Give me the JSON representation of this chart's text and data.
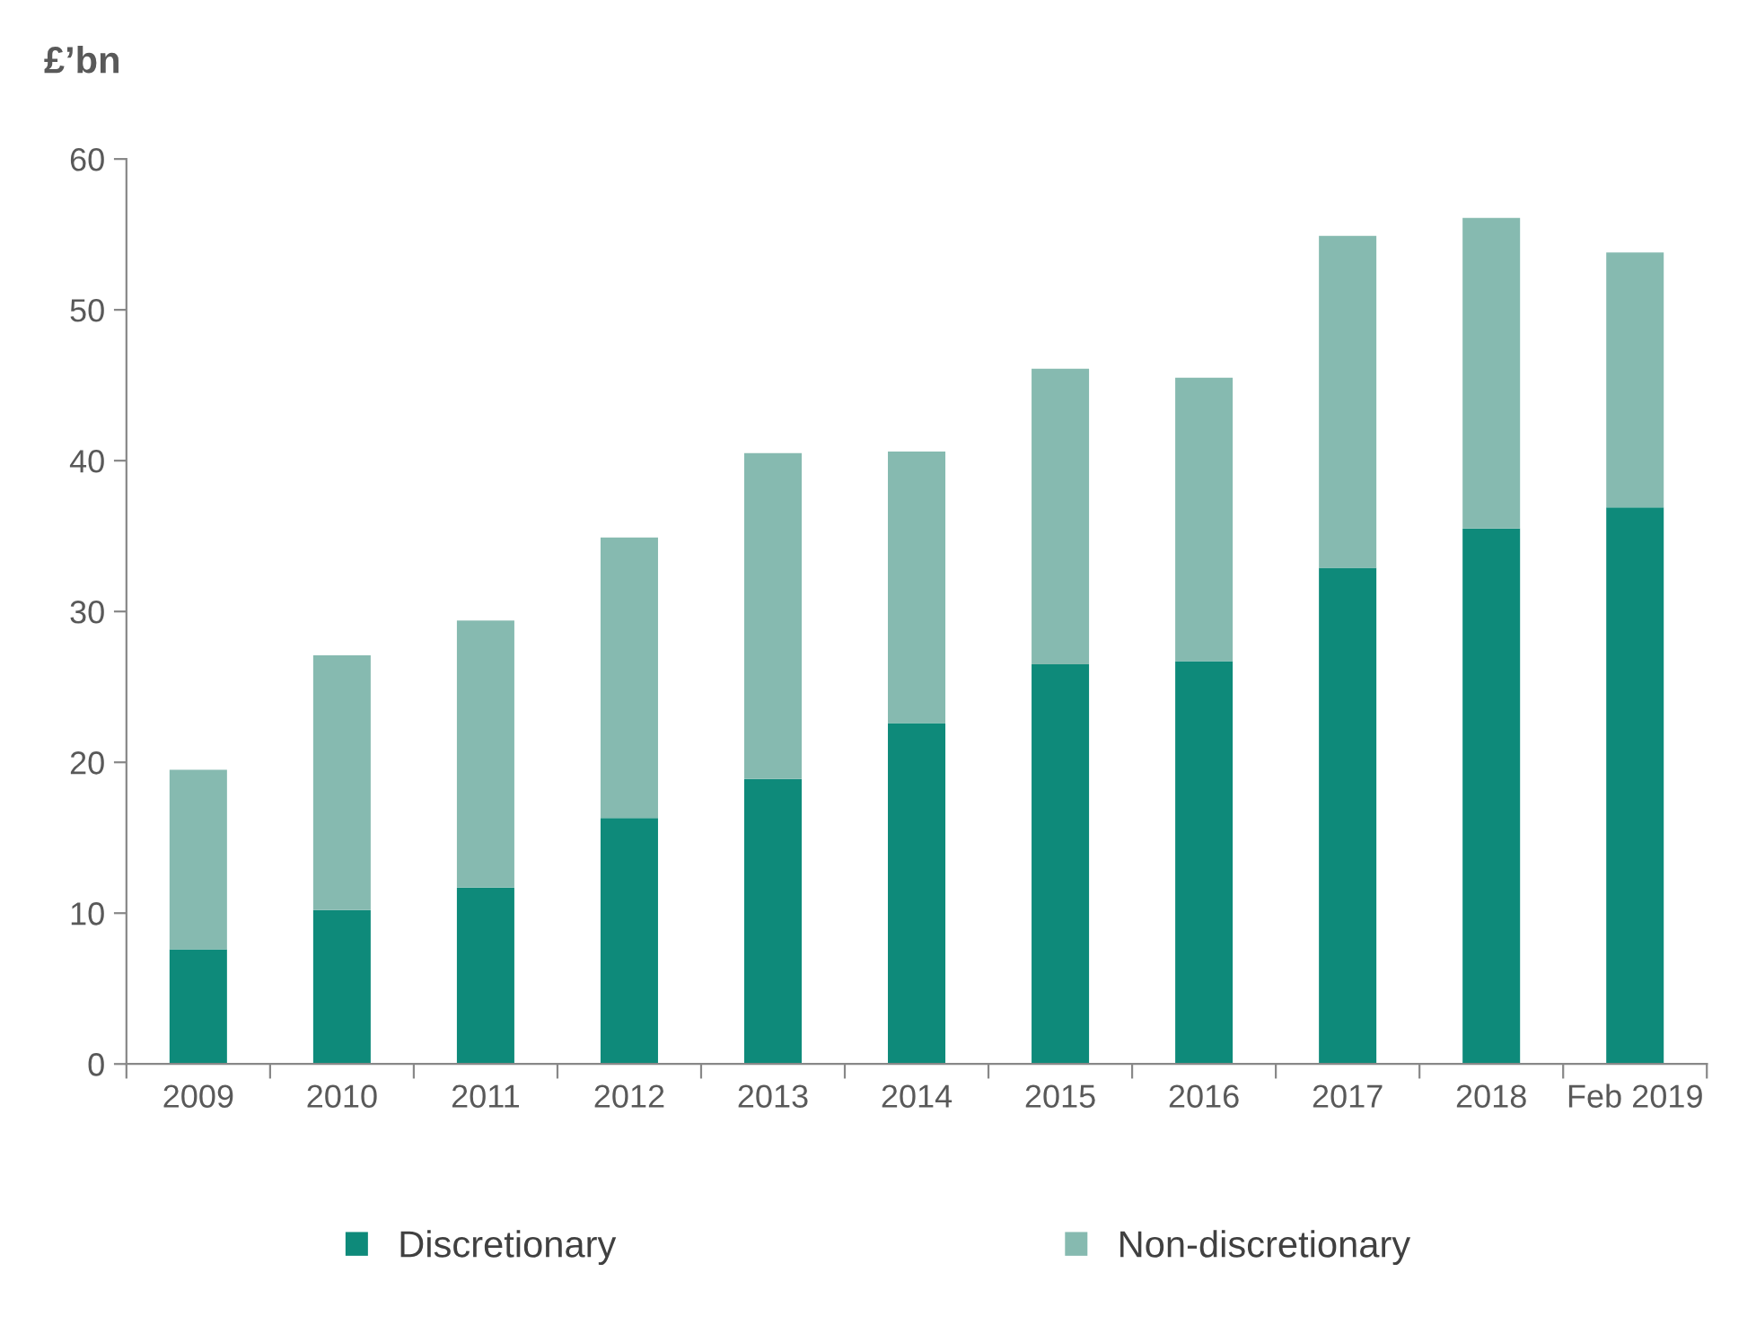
{
  "chart_data": {
    "type": "bar",
    "stacked": true,
    "ylabel": "£’bn",
    "categories": [
      "2009",
      "2010",
      "2011",
      "2012",
      "2013",
      "2014",
      "2015",
      "2016",
      "2017",
      "2018",
      "Feb 2019"
    ],
    "series": [
      {
        "name": "Discretionary",
        "color": "#0e8a7a",
        "values": [
          7.6,
          10.2,
          11.7,
          16.3,
          18.9,
          22.6,
          26.5,
          26.7,
          32.9,
          35.5,
          36.9
        ]
      },
      {
        "name": "Non-discretionary",
        "color": "#86bab0",
        "values": [
          11.9,
          16.9,
          17.7,
          18.6,
          21.6,
          18.0,
          19.6,
          18.8,
          22.0,
          20.6,
          16.9
        ]
      }
    ],
    "ylim": [
      0,
      60
    ],
    "yticks": [
      0,
      10,
      20,
      30,
      40,
      50,
      60
    ],
    "grid": false,
    "legend": "bottom"
  }
}
